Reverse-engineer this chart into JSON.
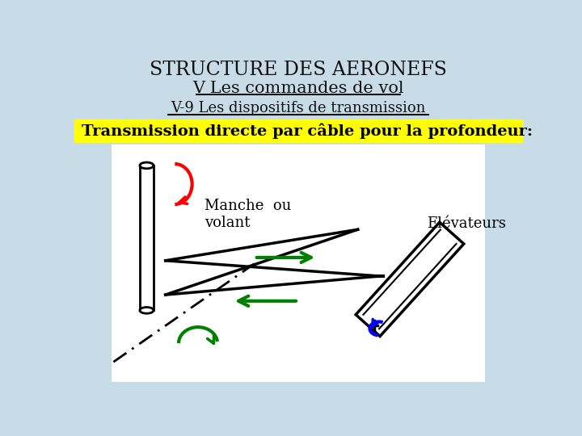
{
  "title1": "STRUCTURE DES AERONEFS",
  "title2": "V Les commandes de vol",
  "title3": "V-9 Les dispositifs de transmission",
  "subtitle": "Transmission directe par câble pour la profondeur:",
  "label_manche": "Manche  ou\nvolant",
  "label_elevateurs": "Elévateurs",
  "bg_color": "#c8dce8",
  "yellow_bg": "#ffff00",
  "diagram_bg": "#ffffff",
  "title_color": "#111111",
  "subtitle_color": "#000000"
}
